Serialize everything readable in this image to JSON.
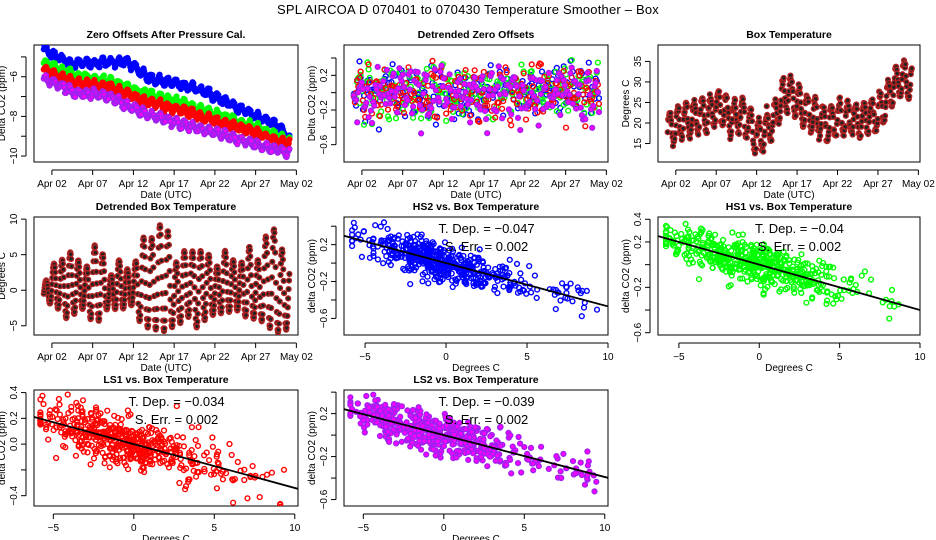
{
  "page_title": "SPL   AIRCOA D   070401 to 070430   Temperature Smoother – Box",
  "colors": {
    "HS2": "#0000ff",
    "HS1": "#00ff00",
    "LS1": "#ff0000",
    "LS2": "#a020f0",
    "LS2_fill": "#ff00ff",
    "box": "#b22222",
    "fit_line": "#000000"
  },
  "chart_data": [
    {
      "id": "zero-offsets",
      "type": "scatter",
      "title": "Zero Offsets After Pressure Cal.",
      "xlabel": "Date (UTC)",
      "ylabel": "Delta CO2 (ppm)",
      "x_tick_labels": [
        "Apr 02",
        "Apr 07",
        "Apr 12",
        "Apr 17",
        "Apr 22",
        "Apr 27",
        "May 02"
      ],
      "x_tick_days": [
        2,
        7,
        12,
        17,
        22,
        27,
        32
      ],
      "xlim_days": [
        -0.2,
        32.2
      ],
      "ylim": [
        -10.3,
        -4.4
      ],
      "y_ticks": [
        -5,
        -6,
        -7,
        -8,
        -9,
        -10
      ],
      "y_tick_labels": [
        "",
        "-6",
        "",
        "-8",
        "",
        "-10"
      ],
      "series": [
        {
          "name": "HS2",
          "trend": [
            [
              1,
              -4.6
            ],
            [
              4,
              -5.3
            ],
            [
              8,
              -5.3
            ],
            [
              11,
              -5.2
            ],
            [
              14,
              -6.1
            ],
            [
              20,
              -6.6
            ],
            [
              25,
              -7.6
            ],
            [
              30,
              -8.5
            ],
            [
              31,
              -9.2
            ]
          ]
        },
        {
          "name": "HS1",
          "trend": [
            [
              1,
              -5.3
            ],
            [
              5,
              -6.0
            ],
            [
              9,
              -6.2
            ],
            [
              13,
              -6.8
            ],
            [
              17,
              -7.2
            ],
            [
              22,
              -7.9
            ],
            [
              27,
              -8.6
            ],
            [
              31,
              -9.2
            ]
          ]
        },
        {
          "name": "LS1",
          "trend": [
            [
              1,
              -5.7
            ],
            [
              5,
              -6.3
            ],
            [
              9,
              -6.5
            ],
            [
              13,
              -7.2
            ],
            [
              17,
              -7.6
            ],
            [
              22,
              -8.2
            ],
            [
              27,
              -8.8
            ],
            [
              31,
              -9.4
            ]
          ]
        },
        {
          "name": "LS2",
          "trend": [
            [
              1,
              -6.1
            ],
            [
              5,
              -6.8
            ],
            [
              9,
              -7.0
            ],
            [
              13,
              -7.8
            ],
            [
              17,
              -8.3
            ],
            [
              22,
              -8.8
            ],
            [
              27,
              -9.4
            ],
            [
              31,
              -9.8
            ]
          ]
        }
      ]
    },
    {
      "id": "detrended-zero-offsets",
      "type": "scatter",
      "title": "Detrended Zero Offsets",
      "xlabel": "Date (UTC)",
      "ylabel": "Delta CO2 (ppm)",
      "x_tick_labels": [
        "Apr 02",
        "Apr 07",
        "Apr 12",
        "Apr 17",
        "Apr 22",
        "Apr 27",
        "May 02"
      ],
      "x_tick_days": [
        2,
        7,
        12,
        17,
        22,
        27,
        32
      ],
      "xlim_days": [
        -0.2,
        32.2
      ],
      "ylim": [
        -0.8,
        0.55
      ],
      "y_ticks": [
        0.4,
        0.2,
        0.0,
        -0.2,
        -0.4,
        -0.6
      ],
      "y_tick_labels": [
        "",
        "0.2",
        "",
        "-0.2",
        "",
        "-0.6"
      ],
      "series_names": [
        "HS2",
        "HS1",
        "LS1",
        "LS2"
      ],
      "range": [
        -0.7,
        0.48
      ]
    },
    {
      "id": "box-temperature",
      "type": "scatter",
      "title": "Box Temperature",
      "xlabel": "Date (UTC)",
      "ylabel": "Degrees C",
      "x_tick_labels": [
        "Apr 02",
        "Apr 07",
        "Apr 12",
        "Apr 17",
        "Apr 22",
        "Apr 27",
        "May 02"
      ],
      "x_tick_days": [
        2,
        7,
        12,
        17,
        22,
        27,
        32
      ],
      "xlim_days": [
        -0.2,
        32.2
      ],
      "ylim": [
        10.5,
        39
      ],
      "y_ticks": [
        15,
        20,
        25,
        30,
        35
      ],
      "y_tick_labels": [
        "15",
        "20",
        "25",
        "30",
        "35"
      ],
      "daily_mean": [
        [
          1,
          18
        ],
        [
          2,
          19
        ],
        [
          3,
          21
        ],
        [
          4,
          21
        ],
        [
          5,
          22
        ],
        [
          6,
          22
        ],
        [
          7,
          24
        ],
        [
          8,
          23
        ],
        [
          9,
          21
        ],
        [
          10,
          22
        ],
        [
          11,
          20
        ],
        [
          12,
          16
        ],
        [
          13,
          18
        ],
        [
          14,
          20
        ],
        [
          15,
          25
        ],
        [
          16,
          28
        ],
        [
          17,
          25
        ],
        [
          18,
          23
        ],
        [
          19,
          22
        ],
        [
          20,
          20
        ],
        [
          21,
          20
        ],
        [
          22,
          21
        ],
        [
          23,
          21
        ],
        [
          24,
          21
        ],
        [
          25,
          20
        ],
        [
          26,
          22
        ],
        [
          27,
          22
        ],
        [
          28,
          25
        ],
        [
          29,
          29
        ],
        [
          30,
          31
        ],
        [
          31,
          30
        ]
      ],
      "daily_amplitude": 4
    },
    {
      "id": "detrended-box-temperature",
      "type": "scatter",
      "title": "Detrended Box Temperature",
      "xlabel": "Date (UTC)",
      "ylabel": "Degrees C",
      "x_tick_labels": [
        "Apr 02",
        "Apr 07",
        "Apr 12",
        "Apr 17",
        "Apr 22",
        "Apr 27",
        "May 02"
      ],
      "x_tick_days": [
        2,
        7,
        12,
        17,
        22,
        27,
        32
      ],
      "xlim_days": [
        -0.2,
        32.2
      ],
      "ylim": [
        -6.3,
        10.3
      ],
      "y_ticks": [
        -5,
        0,
        5,
        10
      ],
      "y_tick_labels": [
        "-5",
        "0",
        "5",
        "10"
      ],
      "daily_peak": [
        [
          1,
          0.5
        ],
        [
          2,
          3.7
        ],
        [
          3,
          3.9
        ],
        [
          4,
          5.5
        ],
        [
          5,
          4.8
        ],
        [
          6,
          2.3
        ],
        [
          7,
          6.3
        ],
        [
          8,
          6.3
        ],
        [
          9,
          1.2
        ],
        [
          10,
          4.6
        ],
        [
          11,
          3.0
        ],
        [
          12,
          2.8
        ],
        [
          13,
          7.6
        ],
        [
          14,
          6.8
        ],
        [
          15,
          8.9
        ],
        [
          16,
          9.9
        ],
        [
          17,
          3.4
        ],
        [
          18,
          5.5
        ],
        [
          19,
          5.5
        ],
        [
          20,
          5.4
        ],
        [
          21,
          5.8
        ],
        [
          22,
          2.5
        ],
        [
          23,
          5.8
        ],
        [
          24,
          4.7
        ],
        [
          25,
          2.8
        ],
        [
          26,
          7.0
        ],
        [
          27,
          3.3
        ],
        [
          28,
          7.0
        ],
        [
          29,
          9.2
        ],
        [
          30,
          6.6
        ],
        [
          31,
          3.1
        ]
      ],
      "daily_trough": [
        [
          1,
          -1.5
        ],
        [
          2,
          -2.0
        ],
        [
          3,
          -2.8
        ],
        [
          4,
          -4.3
        ],
        [
          5,
          -3.0
        ],
        [
          6,
          -2.5
        ],
        [
          7,
          -4.6
        ],
        [
          8,
          -4.2
        ],
        [
          9,
          -2.2
        ],
        [
          10,
          -2.8
        ],
        [
          11,
          -2.5
        ],
        [
          12,
          -2.0
        ],
        [
          13,
          -5.1
        ],
        [
          14,
          -5.3
        ],
        [
          15,
          -5.6
        ],
        [
          16,
          -5.8
        ],
        [
          17,
          -5.0
        ],
        [
          18,
          -4.5
        ],
        [
          19,
          -3.5
        ],
        [
          20,
          -5.8
        ],
        [
          21,
          -3.7
        ],
        [
          22,
          -3.4
        ],
        [
          23,
          -3.2
        ],
        [
          24,
          -3.0
        ],
        [
          25,
          -2.8
        ],
        [
          26,
          -4.0
        ],
        [
          27,
          -4.0
        ],
        [
          28,
          -4.5
        ],
        [
          29,
          -5.6
        ],
        [
          30,
          -6.0
        ],
        [
          31,
          -5.4
        ]
      ]
    },
    {
      "id": "hs2-vs-box",
      "type": "scatter",
      "title": "HS2 vs. Box Temperature",
      "series": "HS2",
      "xlabel": "Degrees C",
      "ylabel": "delta CO2 (ppm)",
      "xlim": [
        -6.3,
        10
      ],
      "ylim": [
        -0.78,
        0.5
      ],
      "x_ticks": [
        -5,
        0,
        5,
        10
      ],
      "x_tick_labels": [
        "-5",
        "0",
        "5",
        "10"
      ],
      "y_ticks": [
        0.4,
        0.2,
        0.0,
        -0.2,
        -0.4,
        -0.6
      ],
      "y_tick_labels": [
        "",
        "0.2",
        "",
        "-0.2",
        "",
        "-0.6"
      ],
      "fit": {
        "slope": -0.047,
        "intercept": 0.0
      },
      "annotation": [
        "T. Dep.  =  −0.047",
        "S. Err.  =  0.002"
      ],
      "scatter_sd": 0.1
    },
    {
      "id": "hs1-vs-box",
      "type": "scatter",
      "title": "HS1 vs. Box Temperature",
      "series": "HS1",
      "xlabel": "Degrees C",
      "ylabel": "delta CO2 (ppm)",
      "xlim": [
        -6.3,
        10
      ],
      "ylim": [
        -0.62,
        0.42
      ],
      "x_ticks": [
        -5,
        0,
        5,
        10
      ],
      "x_tick_labels": [
        "-5",
        "0",
        "5",
        "10"
      ],
      "y_ticks": [
        0.4,
        0.2,
        0.0,
        -0.2,
        -0.4,
        -0.6
      ],
      "y_tick_labels": [
        "0.4",
        "0.2",
        "",
        "-0.2",
        "",
        "-0.6"
      ],
      "fit": {
        "slope": -0.04,
        "intercept": 0.0
      },
      "annotation": [
        "T. Dep.  =  −0.04",
        "S. Err.  =  0.002"
      ],
      "scatter_sd": 0.09
    },
    {
      "id": "ls1-vs-box",
      "type": "scatter",
      "title": "LS1 vs. Box Temperature",
      "series": "LS1",
      "xlabel": "Degrees C",
      "ylabel": "delta CO2 (ppm)",
      "xlim": [
        -6.2,
        10.2
      ],
      "ylim": [
        -0.48,
        0.42
      ],
      "x_ticks": [
        -5,
        0,
        5,
        10
      ],
      "x_tick_labels": [
        "-5",
        "0",
        "5",
        "10"
      ],
      "y_ticks": [
        0.4,
        0.2,
        0.0,
        -0.2,
        -0.4
      ],
      "y_tick_labels": [
        "0.4",
        "0.2",
        "0.0",
        "",
        "-0.4"
      ],
      "fit": {
        "slope": -0.034,
        "intercept": 0.0
      },
      "annotation": [
        "T. Dep.  =  −0.034",
        "S. Err.  =  0.002"
      ],
      "scatter_sd": 0.09
    },
    {
      "id": "ls2-vs-box",
      "type": "scatter",
      "title": "LS2 vs. Box Temperature",
      "series": "LS2",
      "xlabel": "Degrees C",
      "ylabel": "delta CO2 (ppm)",
      "xlim": [
        -6.2,
        10.2
      ],
      "ylim": [
        -0.66,
        0.42
      ],
      "x_ticks": [
        -5,
        0,
        5,
        10
      ],
      "x_tick_labels": [
        "-5",
        "0",
        "5",
        "10"
      ],
      "y_ticks": [
        0.4,
        0.2,
        0.0,
        -0.2,
        -0.4,
        -0.6
      ],
      "y_tick_labels": [
        "",
        "0.2",
        "",
        "-0.2",
        "",
        "-0.6"
      ],
      "fit": {
        "slope": -0.039,
        "intercept": 0.0
      },
      "annotation": [
        "T. Dep.  =  −0.039",
        "S. Err.  =  0.002"
      ],
      "scatter_sd": 0.09
    }
  ]
}
